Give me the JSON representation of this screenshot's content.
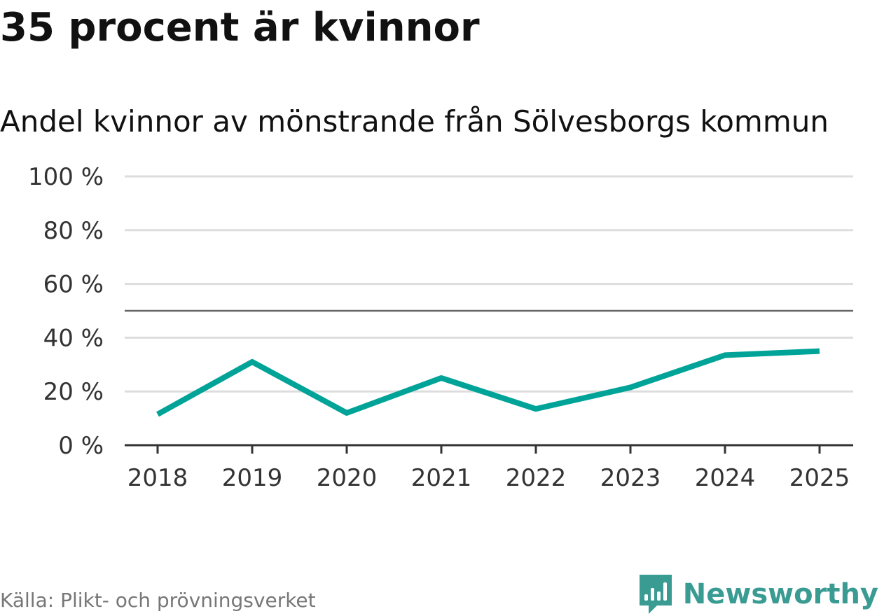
{
  "chart_data": {
    "type": "line",
    "title": "35 procent är kvinnor",
    "subtitle": "Andel kvinnor av mönstrande från Sölvesborgs kommun",
    "categories": [
      "2018",
      "2019",
      "2020",
      "2021",
      "2022",
      "2023",
      "2024",
      "2025"
    ],
    "values": [
      11.5,
      31,
      12,
      25,
      13.5,
      21.5,
      33.5,
      35
    ],
    "yticks": [
      0,
      20,
      40,
      60,
      80,
      100
    ],
    "ytick_labels": [
      "0 %",
      "20 %",
      "40 %",
      "60 %",
      "80 %",
      "100 %"
    ],
    "ylim": [
      0,
      100
    ],
    "reference_line": 50,
    "grid": true,
    "legend": "none",
    "line_color": "#00a398",
    "grid_color": "#dddddd",
    "reference_color": "#666666",
    "axis_color": "#333333"
  },
  "footer": {
    "source": "Källa: Plikt- och prövningsverket",
    "brand": "Newsworthy",
    "brand_icon": "newsworthy-logo-icon",
    "brand_color": "#3a9b93"
  }
}
